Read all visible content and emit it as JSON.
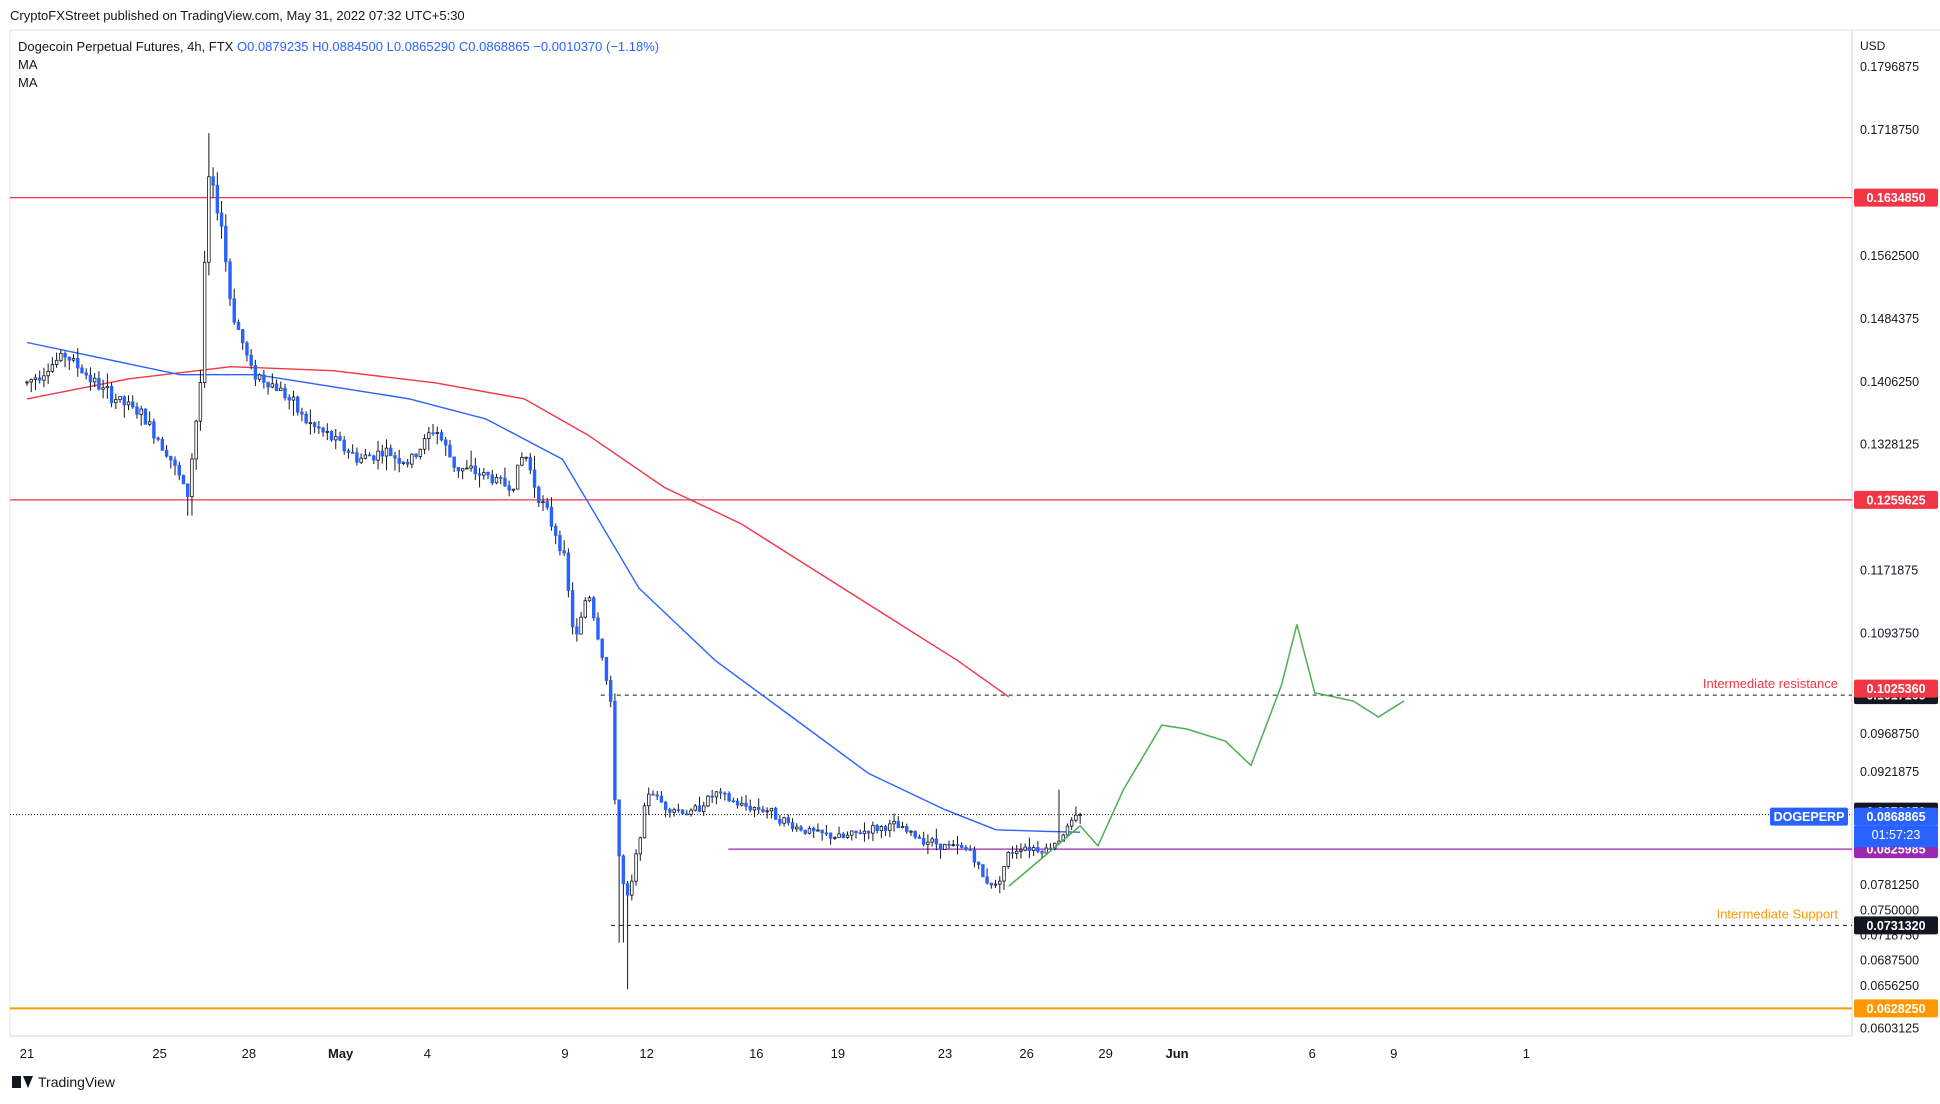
{
  "header": {
    "published": "CryptoFXStreet published on TradingView.com, May 31, 2022 07:32 UTC+5:30",
    "symbol_desc": "Dogecoin Perpetual Futures, 4h, FTX",
    "ohlc": "O0.0879235  H0.0884500  L0.0865290  C0.0868865  −0.0010370 (−1.18%)",
    "ma1": "MA",
    "ma2": "MA"
  },
  "footer": {
    "brand": "TradingView"
  },
  "colors": {
    "up": "#ffffff",
    "down": "#2962ff",
    "wick": "#131722",
    "ma_blue": "#2962ff",
    "ma_red": "#f23645",
    "resistance_line": "#f23645",
    "support_orange": "#ff9800",
    "support_purple": "#9c27b0",
    "projection": "#4caf50",
    "label_bg_dark": "#131722"
  },
  "chart_data": {
    "type": "candlestick",
    "title": "Dogecoin Perpetual Futures, 4h, FTX",
    "currency": "USD",
    "ylim": [
      0.0594,
      0.1843
    ],
    "x_ticks": [
      "21",
      "25",
      "28",
      "May",
      "4",
      "9",
      "12",
      "16",
      "19",
      "23",
      "26",
      "29",
      "Jun",
      "6",
      "9",
      "1"
    ],
    "y_ticks": [
      "0.1796875",
      "0.1718750",
      "0.1562500",
      "0.1484375",
      "0.1406250",
      "0.1328125",
      "0.1171875",
      "0.1093750",
      "0.0968750",
      "0.0921875",
      "0.0781250",
      "0.0750000",
      "0.0718750",
      "0.0687500",
      "0.0656250",
      "0.0603125"
    ],
    "price_points": [
      {
        "d": 0,
        "p": 0.1405
      },
      {
        "d": 1.5,
        "p": 0.144
      },
      {
        "d": 3,
        "p": 0.1395
      },
      {
        "d": 4.5,
        "p": 0.1365
      },
      {
        "d": 5.5,
        "p": 0.132
      },
      {
        "d": 6.3,
        "p": 0.1265
      },
      {
        "d": 6.8,
        "p": 0.1405
      },
      {
        "d": 7.1,
        "p": 0.166
      },
      {
        "d": 7.6,
        "p": 0.161
      },
      {
        "d": 8.0,
        "p": 0.15
      },
      {
        "d": 8.8,
        "p": 0.142
      },
      {
        "d": 10,
        "p": 0.1395
      },
      {
        "d": 11,
        "p": 0.1355
      },
      {
        "d": 12,
        "p": 0.1335
      },
      {
        "d": 13,
        "p": 0.131
      },
      {
        "d": 14,
        "p": 0.132
      },
      {
        "d": 15,
        "p": 0.1305
      },
      {
        "d": 16,
        "p": 0.135
      },
      {
        "d": 16.8,
        "p": 0.13
      },
      {
        "d": 18,
        "p": 0.129
      },
      {
        "d": 19,
        "p": 0.1275
      },
      {
        "d": 19.5,
        "p": 0.132
      },
      {
        "d": 20,
        "p": 0.127
      },
      {
        "d": 21,
        "p": 0.12
      },
      {
        "d": 21.5,
        "p": 0.108
      },
      {
        "d": 22,
        "p": 0.115
      },
      {
        "d": 22.6,
        "p": 0.106
      },
      {
        "d": 22.9,
        "p": 0.1
      },
      {
        "d": 23.1,
        "p": 0.086
      },
      {
        "d": 23.3,
        "p": 0.079
      },
      {
        "d": 23.6,
        "p": 0.076
      },
      {
        "d": 24,
        "p": 0.084
      },
      {
        "d": 24.4,
        "p": 0.09
      },
      {
        "d": 25,
        "p": 0.088
      },
      {
        "d": 26,
        "p": 0.087
      },
      {
        "d": 27,
        "p": 0.0895
      },
      {
        "d": 28,
        "p": 0.088
      },
      {
        "d": 29,
        "p": 0.0875
      },
      {
        "d": 30,
        "p": 0.0855
      },
      {
        "d": 31,
        "p": 0.0845
      },
      {
        "d": 32,
        "p": 0.084
      },
      {
        "d": 33,
        "p": 0.085
      },
      {
        "d": 34,
        "p": 0.0855
      },
      {
        "d": 35,
        "p": 0.084
      },
      {
        "d": 36,
        "p": 0.083
      },
      {
        "d": 37,
        "p": 0.0825
      },
      {
        "d": 37.5,
        "p": 0.079
      },
      {
        "d": 38,
        "p": 0.078
      },
      {
        "d": 38.5,
        "p": 0.082
      },
      {
        "d": 39,
        "p": 0.083
      },
      {
        "d": 40,
        "p": 0.0825
      },
      {
        "d": 40.5,
        "p": 0.084
      },
      {
        "d": 41,
        "p": 0.086
      },
      {
        "d": 41.3,
        "p": 0.0868865
      }
    ],
    "candle_count": 250,
    "last_x": 41.3,
    "ma_blue": [
      {
        "d": 0,
        "p": 0.1455
      },
      {
        "d": 3,
        "p": 0.1435
      },
      {
        "d": 6,
        "p": 0.1415
      },
      {
        "d": 9,
        "p": 0.1415
      },
      {
        "d": 12,
        "p": 0.14
      },
      {
        "d": 15,
        "p": 0.1385
      },
      {
        "d": 18,
        "p": 0.136
      },
      {
        "d": 21,
        "p": 0.131
      },
      {
        "d": 22.5,
        "p": 0.123
      },
      {
        "d": 24,
        "p": 0.115
      },
      {
        "d": 27,
        "p": 0.106
      },
      {
        "d": 30,
        "p": 0.099
      },
      {
        "d": 33,
        "p": 0.092
      },
      {
        "d": 36,
        "p": 0.0875
      },
      {
        "d": 38,
        "p": 0.085
      },
      {
        "d": 40,
        "p": 0.0848
      },
      {
        "d": 41.3,
        "p": 0.0847
      }
    ],
    "ma_red": [
      {
        "d": 0,
        "p": 0.1385
      },
      {
        "d": 4,
        "p": 0.141
      },
      {
        "d": 8,
        "p": 0.1425
      },
      {
        "d": 12,
        "p": 0.142
      },
      {
        "d": 16,
        "p": 0.1405
      },
      {
        "d": 19.5,
        "p": 0.1385
      },
      {
        "d": 22,
        "p": 0.134
      },
      {
        "d": 25,
        "p": 0.1275
      },
      {
        "d": 28,
        "p": 0.123
      },
      {
        "d": 31,
        "p": 0.117
      },
      {
        "d": 34,
        "p": 0.111
      },
      {
        "d": 36.5,
        "p": 0.106
      },
      {
        "d": 38.5,
        "p": 0.1015
      }
    ],
    "projection": [
      {
        "d": 38.5,
        "p": 0.078
      },
      {
        "d": 40,
        "p": 0.082
      },
      {
        "d": 41.3,
        "p": 0.0855
      },
      {
        "d": 42,
        "p": 0.083
      },
      {
        "d": 43,
        "p": 0.09
      },
      {
        "d": 44.5,
        "p": 0.098
      },
      {
        "d": 45.5,
        "p": 0.0975
      },
      {
        "d": 47,
        "p": 0.096
      },
      {
        "d": 48,
        "p": 0.093
      },
      {
        "d": 49.2,
        "p": 0.103
      },
      {
        "d": 49.8,
        "p": 0.1105
      },
      {
        "d": 50.5,
        "p": 0.102
      },
      {
        "d": 52,
        "p": 0.101
      },
      {
        "d": 53,
        "p": 0.099
      },
      {
        "d": 54,
        "p": 0.101
      }
    ],
    "levels": [
      {
        "price": 0.163485,
        "label": "0.1634850",
        "style": "red_solid"
      },
      {
        "price": 0.1259625,
        "label": "0.1259625",
        "style": "red_solid"
      },
      {
        "price": 0.1017165,
        "label": "0.1017165",
        "style": "black_dashed",
        "x_start": 22.5,
        "text": "Intermediate resistance"
      },
      {
        "price": 0.0825985,
        "label": "0.0825985",
        "style": "purple_solid",
        "x_start": 27.5
      },
      {
        "price": 0.073132,
        "label": "0.0731320",
        "style": "black_dashed",
        "x_start": 22.9,
        "text": "Intermediate Support"
      },
      {
        "price": 0.062825,
        "label": "0.0628250",
        "style": "orange_solid"
      }
    ],
    "right_labels": [
      {
        "price": 0.102536,
        "label": "0.1025360",
        "color": "#f23645"
      },
      {
        "price": 0.087265,
        "label": "0.0872650",
        "color": "#131722"
      },
      {
        "price": 0.0868865,
        "label": "0.0868865",
        "color": "#2962ff"
      },
      {
        "price": 0.0846905,
        "label": "0.0846905",
        "color": "#2962ff"
      }
    ],
    "symbol_tag": "DOGEPERP",
    "countdown": "01:57:23"
  }
}
